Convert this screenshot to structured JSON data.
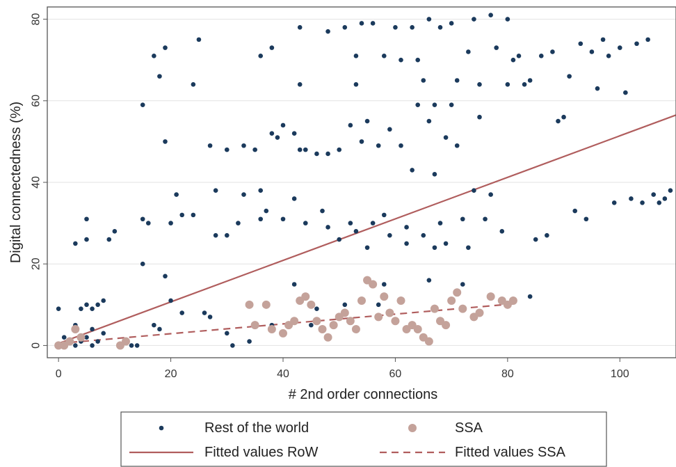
{
  "chart_data": {
    "type": "scatter",
    "xlabel": "# 2nd order connections",
    "ylabel": "Digital connectedness (%)",
    "xlim": [
      -2,
      110
    ],
    "ylim": [
      -3,
      83
    ],
    "xticks": [
      0,
      20,
      40,
      60,
      80,
      100
    ],
    "yticks": [
      0,
      20,
      40,
      60,
      80
    ],
    "grid": true,
    "legend_placement": "bottom",
    "colors": {
      "row": "#1b3a5c",
      "ssa": "#c4a29a",
      "fit": "#b05d5d"
    },
    "series": [
      {
        "name": "Rest of the world",
        "kind": "scatter",
        "points": [
          [
            0,
            9
          ],
          [
            1,
            2
          ],
          [
            2,
            1
          ],
          [
            3,
            0
          ],
          [
            4,
            1
          ],
          [
            5,
            2
          ],
          [
            6,
            0
          ],
          [
            7,
            1
          ],
          [
            8,
            3
          ],
          [
            3,
            5
          ],
          [
            6,
            4
          ],
          [
            4,
            9
          ],
          [
            5,
            10
          ],
          [
            6,
            9
          ],
          [
            7,
            10
          ],
          [
            8,
            11
          ],
          [
            3,
            25
          ],
          [
            5,
            31
          ],
          [
            5,
            26
          ],
          [
            9,
            26
          ],
          [
            10,
            28
          ],
          [
            12,
            1
          ],
          [
            13,
            0
          ],
          [
            14,
            0
          ],
          [
            15,
            59
          ],
          [
            15,
            20
          ],
          [
            15,
            31
          ],
          [
            16,
            30
          ],
          [
            17,
            5
          ],
          [
            18,
            4
          ],
          [
            17,
            71
          ],
          [
            18,
            66
          ],
          [
            19,
            73
          ],
          [
            19,
            50
          ],
          [
            19,
            17
          ],
          [
            20,
            11
          ],
          [
            20,
            30
          ],
          [
            21,
            37
          ],
          [
            22,
            32
          ],
          [
            22,
            8
          ],
          [
            24,
            32
          ],
          [
            24,
            64
          ],
          [
            25,
            75
          ],
          [
            26,
            8
          ],
          [
            27,
            7
          ],
          [
            27,
            49
          ],
          [
            28,
            38
          ],
          [
            28,
            27
          ],
          [
            30,
            48
          ],
          [
            30,
            3
          ],
          [
            30,
            27
          ],
          [
            31,
            0
          ],
          [
            32,
            30
          ],
          [
            33,
            49
          ],
          [
            33,
            37
          ],
          [
            34,
            1
          ],
          [
            35,
            48
          ],
          [
            36,
            31
          ],
          [
            36,
            38
          ],
          [
            36,
            71
          ],
          [
            37,
            33
          ],
          [
            38,
            52
          ],
          [
            38,
            73
          ],
          [
            38,
            5
          ],
          [
            39,
            51
          ],
          [
            40,
            54
          ],
          [
            40,
            31
          ],
          [
            41,
            5
          ],
          [
            42,
            52
          ],
          [
            42,
            36
          ],
          [
            42,
            15
          ],
          [
            43,
            78
          ],
          [
            43,
            64
          ],
          [
            43,
            48
          ],
          [
            44,
            48
          ],
          [
            44,
            30
          ],
          [
            45,
            5
          ],
          [
            46,
            47
          ],
          [
            46,
            9
          ],
          [
            47,
            33
          ],
          [
            48,
            77
          ],
          [
            48,
            29
          ],
          [
            48,
            47
          ],
          [
            50,
            48
          ],
          [
            50,
            26
          ],
          [
            51,
            78
          ],
          [
            51,
            10
          ],
          [
            52,
            54
          ],
          [
            52,
            30
          ],
          [
            53,
            71
          ],
          [
            53,
            64
          ],
          [
            53,
            28
          ],
          [
            54,
            79
          ],
          [
            54,
            50
          ],
          [
            55,
            55
          ],
          [
            55,
            24
          ],
          [
            56,
            79
          ],
          [
            56,
            30
          ],
          [
            57,
            49
          ],
          [
            57,
            10
          ],
          [
            58,
            71
          ],
          [
            58,
            32
          ],
          [
            58,
            15
          ],
          [
            59,
            53
          ],
          [
            59,
            27
          ],
          [
            60,
            78
          ],
          [
            60,
            6
          ],
          [
            61,
            49
          ],
          [
            61,
            70
          ],
          [
            62,
            29
          ],
          [
            62,
            25
          ],
          [
            63,
            78
          ],
          [
            63,
            43
          ],
          [
            64,
            59
          ],
          [
            64,
            70
          ],
          [
            65,
            65
          ],
          [
            65,
            27
          ],
          [
            66,
            80
          ],
          [
            66,
            55
          ],
          [
            66,
            16
          ],
          [
            67,
            59
          ],
          [
            67,
            42
          ],
          [
            67,
            24
          ],
          [
            68,
            78
          ],
          [
            68,
            30
          ],
          [
            69,
            51
          ],
          [
            69,
            25
          ],
          [
            70,
            79
          ],
          [
            70,
            59
          ],
          [
            71,
            65
          ],
          [
            71,
            49
          ],
          [
            72,
            31
          ],
          [
            72,
            15
          ],
          [
            73,
            72
          ],
          [
            73,
            24
          ],
          [
            74,
            80
          ],
          [
            74,
            38
          ],
          [
            75,
            56
          ],
          [
            75,
            64
          ],
          [
            76,
            31
          ],
          [
            77,
            81
          ],
          [
            77,
            37
          ],
          [
            78,
            73
          ],
          [
            79,
            28
          ],
          [
            80,
            80
          ],
          [
            80,
            64
          ],
          [
            81,
            70
          ],
          [
            82,
            71
          ],
          [
            83,
            64
          ],
          [
            84,
            65
          ],
          [
            85,
            26
          ],
          [
            84,
            12
          ],
          [
            86,
            71
          ],
          [
            87,
            27
          ],
          [
            88,
            72
          ],
          [
            89,
            55
          ],
          [
            90,
            56
          ],
          [
            91,
            66
          ],
          [
            92,
            33
          ],
          [
            93,
            74
          ],
          [
            94,
            31
          ],
          [
            95,
            72
          ],
          [
            96,
            63
          ],
          [
            97,
            75
          ],
          [
            98,
            71
          ],
          [
            99,
            35
          ],
          [
            100,
            73
          ],
          [
            101,
            62
          ],
          [
            102,
            36
          ],
          [
            103,
            74
          ],
          [
            104,
            35
          ],
          [
            105,
            75
          ],
          [
            106,
            37
          ],
          [
            107,
            35
          ],
          [
            108,
            36
          ],
          [
            109,
            38
          ]
        ]
      },
      {
        "name": "SSA",
        "kind": "scatter",
        "points": [
          [
            0,
            0
          ],
          [
            1,
            0
          ],
          [
            2,
            1
          ],
          [
            3,
            4
          ],
          [
            4,
            2
          ],
          [
            11,
            0
          ],
          [
            12,
            1
          ],
          [
            34,
            10
          ],
          [
            35,
            5
          ],
          [
            37,
            10
          ],
          [
            38,
            4
          ],
          [
            40,
            3
          ],
          [
            41,
            5
          ],
          [
            42,
            6
          ],
          [
            43,
            11
          ],
          [
            44,
            12
          ],
          [
            45,
            10
          ],
          [
            46,
            6
          ],
          [
            47,
            4
          ],
          [
            48,
            2
          ],
          [
            49,
            5
          ],
          [
            50,
            7
          ],
          [
            51,
            8
          ],
          [
            52,
            6
          ],
          [
            53,
            4
          ],
          [
            54,
            11
          ],
          [
            55,
            16
          ],
          [
            56,
            15
          ],
          [
            57,
            7
          ],
          [
            58,
            12
          ],
          [
            59,
            8
          ],
          [
            60,
            6
          ],
          [
            61,
            11
          ],
          [
            62,
            4
          ],
          [
            63,
            5
          ],
          [
            64,
            4
          ],
          [
            65,
            2
          ],
          [
            66,
            1
          ],
          [
            67,
            9
          ],
          [
            68,
            6
          ],
          [
            69,
            5
          ],
          [
            70,
            11
          ],
          [
            71,
            13
          ],
          [
            72,
            9
          ],
          [
            74,
            7
          ],
          [
            75,
            8
          ],
          [
            77,
            12
          ],
          [
            79,
            11
          ],
          [
            80,
            10
          ],
          [
            81,
            11
          ]
        ]
      },
      {
        "name": "Fitted values RoW",
        "kind": "line",
        "style": "solid",
        "points": [
          [
            0,
            0.5
          ],
          [
            110,
            56.5
          ]
        ]
      },
      {
        "name": "Fitted values SSA",
        "kind": "line",
        "style": "dashed",
        "points": [
          [
            0,
            0.5
          ],
          [
            81,
            10.2
          ]
        ]
      }
    ]
  }
}
